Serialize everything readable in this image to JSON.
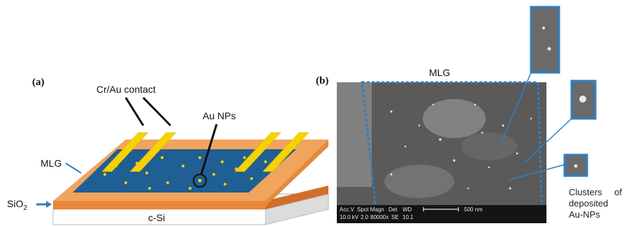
{
  "panel_a": {
    "label": "(a)",
    "contact_label": "Cr/Au contact",
    "nps_label": "Au NPs",
    "mlg_label": "MLG",
    "sio2_label": "SiO",
    "sio2_sub": "2",
    "substrate_label": "c-Si"
  },
  "panel_b": {
    "label": "(b)",
    "mlg_label": "MLG",
    "sem_info": {
      "row1": [
        "Acc.V",
        "Spot Magn",
        "Det",
        "WD"
      ],
      "row2": [
        "10.0 kV",
        "2.0",
        "80000x",
        "SE",
        "10.1"
      ],
      "scale": "500 nm"
    },
    "clusters_caption": [
      "Clusters",
      "of",
      "deposited",
      "Au-NPs"
    ]
  },
  "colors": {
    "substrate_top": "#f0a45c",
    "substrate_side": "#e8873a",
    "mlg_blue": "#1f5f94",
    "contact_yellow": "#f5d200",
    "highlight_blue": "#2f7fc4"
  }
}
